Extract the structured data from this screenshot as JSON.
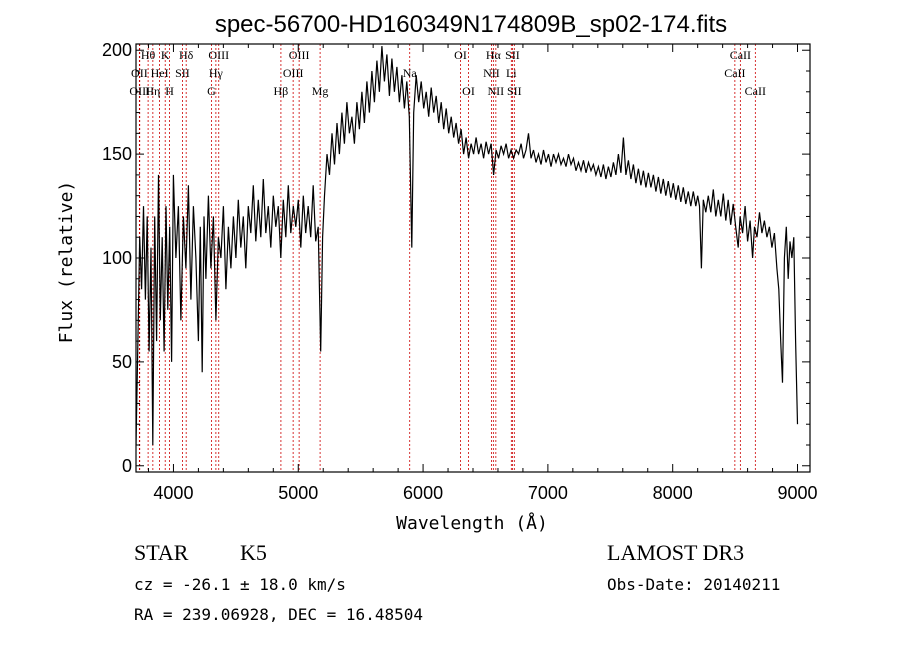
{
  "chart_data": {
    "type": "line",
    "title": "spec-56700-HD160349N174809B_sp02-174.fits",
    "xlabel": "Wavelength (Å)",
    "ylabel": "Flux (relative)",
    "xlim": [
      3700,
      9100
    ],
    "ylim": [
      -3,
      203
    ],
    "xticks": [
      4000,
      5000,
      6000,
      7000,
      8000,
      9000
    ],
    "yticks": [
      0,
      50,
      100,
      150,
      200
    ],
    "grid": false,
    "line_color": "#000000",
    "marker_color": "#cc0000",
    "series": [
      {
        "points": [
          [
            3700,
            10
          ],
          [
            3715,
            60
          ],
          [
            3730,
            110
          ],
          [
            3745,
            85
          ],
          [
            3760,
            125
          ],
          [
            3775,
            80
          ],
          [
            3790,
            120
          ],
          [
            3805,
            55
          ],
          [
            3820,
            105
          ],
          [
            3835,
            10
          ],
          [
            3850,
            120
          ],
          [
            3865,
            60
          ],
          [
            3880,
            140
          ],
          [
            3895,
            70
          ],
          [
            3910,
            110
          ],
          [
            3925,
            55
          ],
          [
            3940,
            125
          ],
          [
            3955,
            75
          ],
          [
            3970,
            115
          ],
          [
            3985,
            50
          ],
          [
            4000,
            140
          ],
          [
            4020,
            100
          ],
          [
            4040,
            125
          ],
          [
            4060,
            70
          ],
          [
            4080,
            120
          ],
          [
            4100,
            95
          ],
          [
            4120,
            135
          ],
          [
            4140,
            80
          ],
          [
            4160,
            125
          ],
          [
            4180,
            100
          ],
          [
            4200,
            60
          ],
          [
            4215,
            115
          ],
          [
            4230,
            45
          ],
          [
            4245,
            120
          ],
          [
            4260,
            90
          ],
          [
            4280,
            130
          ],
          [
            4300,
            95
          ],
          [
            4320,
            120
          ],
          [
            4340,
            70
          ],
          [
            4360,
            110
          ],
          [
            4380,
            100
          ],
          [
            4400,
            125
          ],
          [
            4420,
            85
          ],
          [
            4440,
            115
          ],
          [
            4460,
            95
          ],
          [
            4480,
            120
          ],
          [
            4500,
            100
          ],
          [
            4520,
            128
          ],
          [
            4540,
            105
          ],
          [
            4560,
            120
          ],
          [
            4580,
            95
          ],
          [
            4600,
            125
          ],
          [
            4620,
            112
          ],
          [
            4640,
            135
          ],
          [
            4660,
            108
          ],
          [
            4680,
            128
          ],
          [
            4700,
            110
          ],
          [
            4720,
            138
          ],
          [
            4740,
            112
          ],
          [
            4760,
            125
          ],
          [
            4780,
            105
          ],
          [
            4800,
            130
          ],
          [
            4820,
            115
          ],
          [
            4840,
            125
          ],
          [
            4860,
            100
          ],
          [
            4880,
            128
          ],
          [
            4900,
            110
          ],
          [
            4920,
            135
          ],
          [
            4940,
            112
          ],
          [
            4960,
            125
          ],
          [
            4980,
            115
          ],
          [
            5000,
            128
          ],
          [
            5020,
            105
          ],
          [
            5040,
            130
          ],
          [
            5060,
            112
          ],
          [
            5080,
            125
          ],
          [
            5100,
            110
          ],
          [
            5120,
            135
          ],
          [
            5140,
            108
          ],
          [
            5160,
            115
          ],
          [
            5180,
            55
          ],
          [
            5195,
            110
          ],
          [
            5210,
            130
          ],
          [
            5230,
            150
          ],
          [
            5250,
            140
          ],
          [
            5270,
            160
          ],
          [
            5290,
            145
          ],
          [
            5310,
            165
          ],
          [
            5330,
            150
          ],
          [
            5350,
            170
          ],
          [
            5370,
            155
          ],
          [
            5390,
            175
          ],
          [
            5410,
            160
          ],
          [
            5430,
            168
          ],
          [
            5450,
            155
          ],
          [
            5470,
            175
          ],
          [
            5490,
            162
          ],
          [
            5510,
            180
          ],
          [
            5530,
            165
          ],
          [
            5550,
            185
          ],
          [
            5570,
            170
          ],
          [
            5590,
            190
          ],
          [
            5610,
            175
          ],
          [
            5630,
            195
          ],
          [
            5650,
            180
          ],
          [
            5670,
            202
          ],
          [
            5690,
            185
          ],
          [
            5710,
            198
          ],
          [
            5730,
            178
          ],
          [
            5750,
            196
          ],
          [
            5770,
            180
          ],
          [
            5790,
            192
          ],
          [
            5810,
            175
          ],
          [
            5830,
            188
          ],
          [
            5850,
            172
          ],
          [
            5870,
            185
          ],
          [
            5890,
            168
          ],
          [
            5910,
            105
          ],
          [
            5925,
            170
          ],
          [
            5945,
            188
          ],
          [
            5965,
            175
          ],
          [
            5985,
            185
          ],
          [
            6005,
            172
          ],
          [
            6025,
            180
          ],
          [
            6045,
            168
          ],
          [
            6065,
            182
          ],
          [
            6085,
            170
          ],
          [
            6105,
            178
          ],
          [
            6125,
            165
          ],
          [
            6145,
            175
          ],
          [
            6165,
            162
          ],
          [
            6185,
            172
          ],
          [
            6205,
            160
          ],
          [
            6225,
            168
          ],
          [
            6245,
            158
          ],
          [
            6265,
            165
          ],
          [
            6285,
            155
          ],
          [
            6305,
            162
          ],
          [
            6325,
            150
          ],
          [
            6345,
            158
          ],
          [
            6365,
            148
          ],
          [
            6385,
            155
          ],
          [
            6405,
            150
          ],
          [
            6425,
            158
          ],
          [
            6445,
            150
          ],
          [
            6465,
            155
          ],
          [
            6485,
            148
          ],
          [
            6505,
            156
          ],
          [
            6525,
            150
          ],
          [
            6545,
            155
          ],
          [
            6565,
            140
          ],
          [
            6585,
            152
          ],
          [
            6605,
            148
          ],
          [
            6625,
            154
          ],
          [
            6645,
            150
          ],
          [
            6665,
            155
          ],
          [
            6685,
            148
          ],
          [
            6705,
            152
          ],
          [
            6725,
            148
          ],
          [
            6745,
            152
          ],
          [
            6765,
            150
          ],
          [
            6785,
            155
          ],
          [
            6805,
            148
          ],
          [
            6825,
            152
          ],
          [
            6845,
            160
          ],
          [
            6865,
            148
          ],
          [
            6885,
            152
          ],
          [
            6905,
            146
          ],
          [
            6925,
            150
          ],
          [
            6945,
            145
          ],
          [
            6965,
            152
          ],
          [
            6985,
            146
          ],
          [
            7005,
            150
          ],
          [
            7025,
            144
          ],
          [
            7045,
            150
          ],
          [
            7065,
            146
          ],
          [
            7085,
            150
          ],
          [
            7105,
            145
          ],
          [
            7125,
            148
          ],
          [
            7145,
            144
          ],
          [
            7165,
            150
          ],
          [
            7185,
            145
          ],
          [
            7205,
            148
          ],
          [
            7225,
            142
          ],
          [
            7245,
            146
          ],
          [
            7265,
            142
          ],
          [
            7285,
            147
          ],
          [
            7305,
            141
          ],
          [
            7325,
            146
          ],
          [
            7345,
            142
          ],
          [
            7365,
            145
          ],
          [
            7385,
            140
          ],
          [
            7405,
            144
          ],
          [
            7425,
            139
          ],
          [
            7445,
            145
          ],
          [
            7465,
            138
          ],
          [
            7485,
            144
          ],
          [
            7505,
            139
          ],
          [
            7525,
            146
          ],
          [
            7545,
            140
          ],
          [
            7565,
            150
          ],
          [
            7585,
            141
          ],
          [
            7605,
            158
          ],
          [
            7625,
            140
          ],
          [
            7645,
            147
          ],
          [
            7665,
            138
          ],
          [
            7685,
            145
          ],
          [
            7705,
            136
          ],
          [
            7725,
            143
          ],
          [
            7745,
            135
          ],
          [
            7765,
            142
          ],
          [
            7785,
            134
          ],
          [
            7805,
            141
          ],
          [
            7825,
            134
          ],
          [
            7845,
            140
          ],
          [
            7865,
            132
          ],
          [
            7885,
            139
          ],
          [
            7905,
            131
          ],
          [
            7925,
            138
          ],
          [
            7945,
            130
          ],
          [
            7965,
            137
          ],
          [
            7985,
            129
          ],
          [
            8005,
            136
          ],
          [
            8025,
            128
          ],
          [
            8045,
            135
          ],
          [
            8065,
            127
          ],
          [
            8085,
            134
          ],
          [
            8105,
            126
          ],
          [
            8125,
            132
          ],
          [
            8145,
            125
          ],
          [
            8165,
            132
          ],
          [
            8185,
            125
          ],
          [
            8200,
            130
          ],
          [
            8215,
            125
          ],
          [
            8230,
            95
          ],
          [
            8245,
            128
          ],
          [
            8265,
            122
          ],
          [
            8285,
            130
          ],
          [
            8305,
            122
          ],
          [
            8325,
            133
          ],
          [
            8345,
            120
          ],
          [
            8365,
            128
          ],
          [
            8385,
            120
          ],
          [
            8405,
            131
          ],
          [
            8425,
            118
          ],
          [
            8445,
            128
          ],
          [
            8465,
            116
          ],
          [
            8485,
            126
          ],
          [
            8505,
            115
          ],
          [
            8525,
            105
          ],
          [
            8540,
            120
          ],
          [
            8560,
            112
          ],
          [
            8580,
            125
          ],
          [
            8600,
            108
          ],
          [
            8620,
            118
          ],
          [
            8640,
            100
          ],
          [
            8655,
            115
          ],
          [
            8675,
            110
          ],
          [
            8695,
            122
          ],
          [
            8715,
            112
          ],
          [
            8735,
            118
          ],
          [
            8755,
            110
          ],
          [
            8775,
            115
          ],
          [
            8795,
            105
          ],
          [
            8815,
            112
          ],
          [
            8835,
            95
          ],
          [
            8850,
            85
          ],
          [
            8865,
            60
          ],
          [
            8880,
            40
          ],
          [
            8895,
            100
          ],
          [
            8910,
            115
          ],
          [
            8925,
            90
          ],
          [
            8940,
            108
          ],
          [
            8955,
            100
          ],
          [
            8970,
            110
          ],
          [
            8985,
            60
          ],
          [
            9000,
            20
          ]
        ]
      }
    ],
    "lines": [
      {
        "label": "Hθ",
        "x": 3797,
        "row": 0
      },
      {
        "label": "OII",
        "x": 3727,
        "row": 1
      },
      {
        "label": "OIII",
        "x": 3730,
        "row": 2
      },
      {
        "label": "K",
        "x": 3934,
        "row": 0
      },
      {
        "label": "HeI",
        "x": 3889,
        "row": 1
      },
      {
        "label": "Hη",
        "x": 3835,
        "row": 2
      },
      {
        "label": "H",
        "x": 3969,
        "row": 2
      },
      {
        "label": "Hδ",
        "x": 4102,
        "row": 0
      },
      {
        "label": "SII",
        "x": 4072,
        "row": 1
      },
      {
        "label": "OIII",
        "x": 4363,
        "row": 0
      },
      {
        "label": "Hγ",
        "x": 4340,
        "row": 1
      },
      {
        "label": "G",
        "x": 4305,
        "row": 2
      },
      {
        "label": "Hβ",
        "x": 4861,
        "row": 2
      },
      {
        "label": "OIII",
        "x": 5007,
        "row": 0
      },
      {
        "label": "OIII",
        "x": 4959,
        "row": 1
      },
      {
        "label": "Mg",
        "x": 5175,
        "row": 2
      },
      {
        "label": "Na",
        "x": 5893,
        "row": 1
      },
      {
        "label": "OI",
        "x": 6300,
        "row": 0
      },
      {
        "label": "OI",
        "x": 6364,
        "row": 2
      },
      {
        "label": "Hα",
        "x": 6563,
        "row": 0
      },
      {
        "label": "SII",
        "x": 6716,
        "row": 0
      },
      {
        "label": "NII",
        "x": 6548,
        "row": 1
      },
      {
        "label": "Li",
        "x": 6707,
        "row": 1
      },
      {
        "label": "NII",
        "x": 6583,
        "row": 2
      },
      {
        "label": "SII",
        "x": 6731,
        "row": 2
      },
      {
        "label": "CaII",
        "x": 8542,
        "row": 0
      },
      {
        "label": "CaII",
        "x": 8498,
        "row": 1
      },
      {
        "label": "CaII",
        "x": 8662,
        "row": 2
      }
    ]
  },
  "info": {
    "class_label": "STAR",
    "subclass": "K5",
    "cz": "cz = -26.1 ± 18.0 km/s",
    "coords": "RA = 239.06928, DEC =  16.48504",
    "survey": "LAMOST DR3",
    "obs_date": "Obs-Date: 20140211"
  }
}
